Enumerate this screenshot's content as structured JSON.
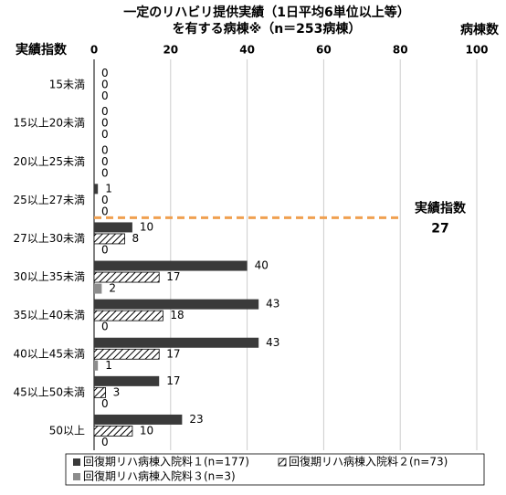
{
  "chart_data": {
    "type": "hbar",
    "title": [
      "一定のリハビリ提供実績（1日平均6単位以上等）",
      "を有する病棟※（n＝253病棟）"
    ],
    "y_label": "実績指数",
    "x_label": "病棟数",
    "categories": [
      "15未満",
      "15以上20未満",
      "20以上25未満",
      "25以上27未満",
      "27以上30未満",
      "30以上35未満",
      "35以上40未満",
      "40以上45未満",
      "45以上50未満",
      "50以上"
    ],
    "series": [
      {
        "name": "回復期リハ病棟入院料１(n=177)",
        "color": "#3a3a3a",
        "pattern": "solid",
        "values": [
          0,
          0,
          0,
          1,
          10,
          40,
          43,
          43,
          17,
          23
        ]
      },
      {
        "name": "回復期リハ病棟入院料２(n=73)",
        "color": "#000000",
        "pattern": "hatch",
        "values": [
          0,
          0,
          0,
          0,
          8,
          17,
          18,
          17,
          3,
          10
        ]
      },
      {
        "name": "回復期リハ病棟入院料３(n=3)",
        "color": "#8c8c8c",
        "pattern": "solid",
        "values": [
          0,
          0,
          0,
          0,
          0,
          2,
          0,
          1,
          0,
          0
        ]
      }
    ],
    "xlim": [
      0,
      100
    ],
    "xticks": [
      0,
      20,
      40,
      60,
      80,
      100
    ],
    "grid": true,
    "annotation": {
      "lines": [
        "実績指数",
        "27"
      ],
      "color": "#f0a050"
    }
  }
}
